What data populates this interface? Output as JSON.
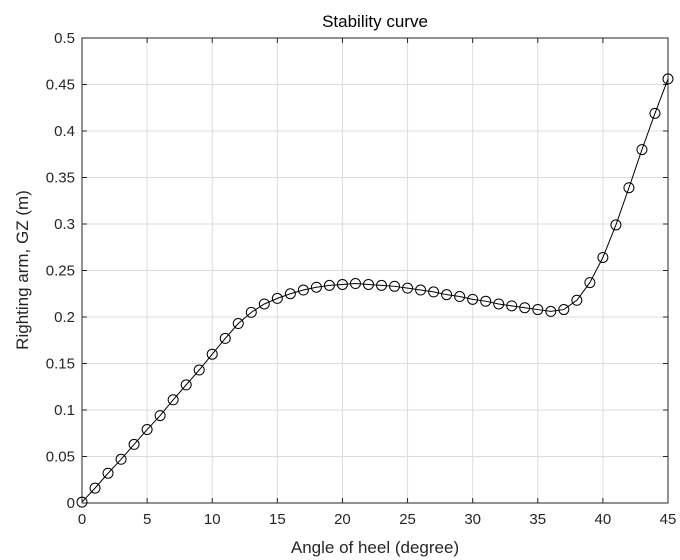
{
  "chart_data": {
    "type": "line",
    "title": "Stability curve",
    "xlabel": "Angle of heel (degree)",
    "ylabel": "Righting arm, GZ (m)",
    "xlim": [
      0,
      45
    ],
    "ylim": [
      0,
      0.5
    ],
    "xticks": [
      0,
      5,
      10,
      15,
      20,
      25,
      30,
      35,
      40,
      45
    ],
    "xtick_labels": [
      "0",
      "5",
      "10",
      "15",
      "20",
      "25",
      "30",
      "35",
      "40",
      "45"
    ],
    "yticks": [
      0,
      0.05,
      0.1,
      0.15,
      0.2,
      0.25,
      0.3,
      0.35,
      0.4,
      0.45,
      0.5
    ],
    "ytick_labels": [
      "0",
      "0.05",
      "0.1",
      "0.15",
      "0.2",
      "0.25",
      "0.3",
      "0.35",
      "0.4",
      "0.45",
      "0.5"
    ],
    "grid": true,
    "line_color": "#000000",
    "marker": "circle-open",
    "series": [
      {
        "x": [
          0,
          1,
          2,
          3,
          4,
          5,
          6,
          7,
          8,
          9,
          10,
          11,
          12,
          13,
          14,
          15,
          16,
          17,
          18,
          19,
          20,
          21,
          22,
          23,
          24,
          25,
          26,
          27,
          28,
          29,
          30,
          31,
          32,
          33,
          34,
          35,
          36,
          37,
          38,
          39,
          40,
          41,
          42,
          43,
          44,
          45
        ],
        "y": [
          0.001,
          0.016,
          0.032,
          0.047,
          0.063,
          0.079,
          0.094,
          0.111,
          0.127,
          0.143,
          0.16,
          0.177,
          0.193,
          0.205,
          0.214,
          0.22,
          0.225,
          0.229,
          0.232,
          0.234,
          0.235,
          0.236,
          0.235,
          0.234,
          0.233,
          0.231,
          0.229,
          0.227,
          0.224,
          0.222,
          0.219,
          0.217,
          0.214,
          0.212,
          0.21,
          0.208,
          0.206,
          0.208,
          0.218,
          0.237,
          0.264,
          0.299,
          0.339,
          0.38,
          0.419,
          0.456
        ]
      }
    ]
  }
}
